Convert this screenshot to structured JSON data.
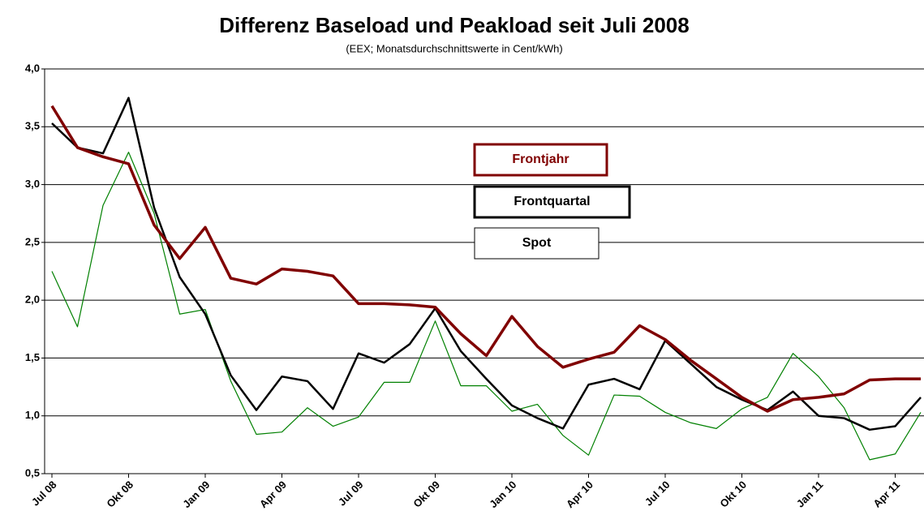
{
  "chart_data": {
    "type": "line",
    "title": "Differenz Baseload und Peakload seit Juli 2008",
    "subtitle": "(EEX; Monatsdurchschnittswerte in Cent/kWh)",
    "categories": [
      "Jul 08",
      null,
      null,
      "Okt 08",
      null,
      null,
      "Jan 09",
      null,
      null,
      "Apr 09",
      null,
      null,
      "Jul 09",
      null,
      null,
      "Okt 09",
      null,
      null,
      "Jan 10",
      null,
      null,
      "Apr 10",
      null,
      null,
      "Jul 10",
      null,
      null,
      "Okt 10",
      null,
      null,
      "Jan 11",
      null,
      null,
      "Apr 11",
      null
    ],
    "series": [
      {
        "name": "Frontjahr",
        "color": "#800000",
        "values": [
          3.68,
          3.32,
          3.24,
          3.18,
          2.65,
          2.36,
          2.63,
          2.19,
          2.14,
          2.27,
          2.25,
          2.21,
          1.97,
          1.97,
          1.96,
          1.94,
          1.71,
          1.52,
          1.86,
          1.6,
          1.42,
          1.49,
          1.55,
          1.78,
          1.66,
          1.48,
          1.32,
          1.16,
          1.04,
          1.14,
          1.16,
          1.19,
          1.31,
          1.32,
          1.32
        ]
      },
      {
        "name": "Frontquartal",
        "color": "#000000",
        "values": [
          3.53,
          3.32,
          3.27,
          3.75,
          2.8,
          2.2,
          1.88,
          1.35,
          1.05,
          1.34,
          1.3,
          1.06,
          1.54,
          1.46,
          1.62,
          1.93,
          1.56,
          1.32,
          1.09,
          0.98,
          0.89,
          1.27,
          1.32,
          1.23,
          1.65,
          1.45,
          1.25,
          1.14,
          1.05,
          1.21,
          1.0,
          0.98,
          0.88,
          0.91,
          1.16
        ]
      },
      {
        "name": "Spot",
        "color": "#008000",
        "values": [
          2.25,
          1.77,
          2.82,
          3.28,
          2.75,
          1.88,
          1.92,
          1.3,
          0.84,
          0.86,
          1.07,
          0.91,
          0.99,
          1.29,
          1.29,
          1.82,
          1.26,
          1.26,
          1.04,
          1.1,
          0.83,
          0.66,
          1.18,
          1.17,
          1.03,
          0.94,
          0.89,
          1.06,
          1.16,
          1.54,
          1.34,
          1.07,
          0.62,
          0.67,
          1.03
        ]
      }
    ],
    "ylim": [
      0.5,
      4.0
    ],
    "yticks": [
      {
        "value": 0.5,
        "label": "0,5"
      },
      {
        "value": 1.0,
        "label": "1,0"
      },
      {
        "value": 1.5,
        "label": "1,5"
      },
      {
        "value": 2.0,
        "label": "2,0"
      },
      {
        "value": 2.5,
        "label": "2,5"
      },
      {
        "value": 3.0,
        "label": "3,0"
      },
      {
        "value": 3.5,
        "label": "3,5"
      },
      {
        "value": 4.0,
        "label": "4,0"
      }
    ],
    "grid": true
  }
}
